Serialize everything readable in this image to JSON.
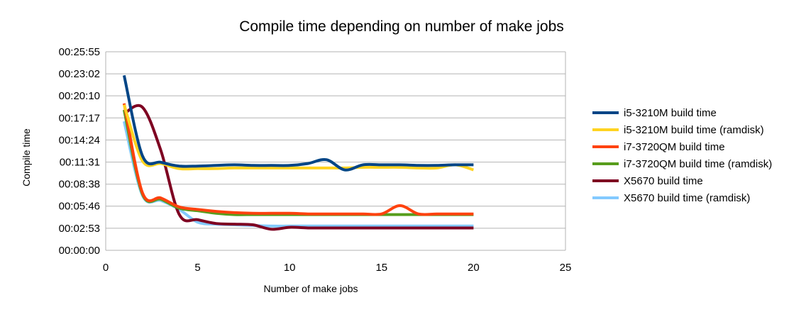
{
  "chart_data": {
    "type": "line",
    "title": "Compile time depending on number of make jobs",
    "xlabel": "Number of make jobs",
    "ylabel": "Compile time",
    "xlim": [
      0,
      25
    ],
    "ylim": [
      0,
      1555
    ],
    "xticks": [
      0,
      5,
      10,
      15,
      20,
      25
    ],
    "yticks": [
      0,
      173,
      346,
      518,
      691,
      864,
      1037,
      1210,
      1382,
      1555
    ],
    "ytick_labels": [
      "00:00:00",
      "00:02:53",
      "00:05:46",
      "00:08:38",
      "00:11:31",
      "00:14:24",
      "00:17:17",
      "00:20:10",
      "00:23:02",
      "00:25:55"
    ],
    "grid": "horizontal",
    "legend_position": "right",
    "x": [
      1,
      2,
      3,
      4,
      5,
      6,
      7,
      8,
      9,
      10,
      11,
      12,
      13,
      14,
      15,
      16,
      17,
      18,
      19,
      20
    ],
    "series": [
      {
        "name": "i5-3210M build time",
        "color": "#004586",
        "values": [
          1370,
          740,
          690,
          660,
          660,
          665,
          670,
          665,
          665,
          665,
          680,
          710,
          630,
          670,
          670,
          670,
          665,
          665,
          670,
          670
        ]
      },
      {
        "name": "i5-3210M build time (ramdisk)",
        "color": "#ffd320",
        "values": [
          1140,
          700,
          680,
          640,
          640,
          640,
          645,
          645,
          645,
          645,
          645,
          645,
          645,
          650,
          650,
          650,
          645,
          645,
          670,
          630
        ]
      },
      {
        "name": "i7-3720QM build time",
        "color": "#ff420e",
        "values": [
          1150,
          450,
          410,
          340,
          320,
          305,
          295,
          290,
          290,
          290,
          285,
          285,
          285,
          285,
          285,
          350,
          285,
          285,
          285,
          285
        ]
      },
      {
        "name": "i7-3720QM build time (ramdisk)",
        "color": "#579d1c",
        "values": [
          1100,
          440,
          400,
          330,
          310,
          290,
          280,
          280,
          280,
          280,
          280,
          280,
          280,
          280,
          280,
          280,
          280,
          280,
          280,
          280
        ]
      },
      {
        "name": "X5670 build time",
        "color": "#7e0021",
        "values": [
          1070,
          1120,
          780,
          280,
          240,
          210,
          205,
          200,
          165,
          180,
          175,
          175,
          175,
          175,
          175,
          175,
          175,
          175,
          175,
          175
        ]
      },
      {
        "name": "X5670 build time (ramdisk)",
        "color": "#83caff",
        "values": [
          1010,
          430,
          390,
          320,
          220,
          205,
          200,
          195,
          190,
          190,
          190,
          190,
          190,
          190,
          190,
          190,
          190,
          190,
          190,
          190
        ]
      }
    ]
  }
}
